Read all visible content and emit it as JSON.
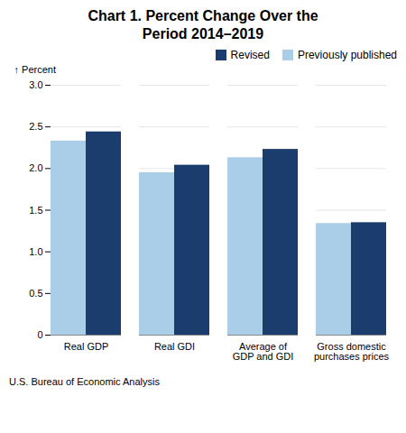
{
  "chart_data": {
    "type": "bar",
    "title": "Chart 1. Percent Change Over the\nPeriod 2014–2019",
    "ylabel": "Percent",
    "footnote": "U.S. Bureau of Economic Analysis",
    "categories": [
      "Real GDP",
      "Real GDI",
      "Average of\nGDP and GDI",
      "Gross domestic\npurchases prices"
    ],
    "series": [
      {
        "name": "Previously published",
        "color": "#aacde8",
        "values": [
          2.33,
          1.95,
          2.13,
          1.34
        ]
      },
      {
        "name": "Revised",
        "color": "#1b3d6e",
        "values": [
          2.44,
          2.04,
          2.23,
          1.35
        ]
      }
    ],
    "ylim": [
      0,
      3.0
    ],
    "yticks": [
      0,
      0.5,
      {
        "value": 1.0,
        "label": "1.0"
      },
      1.5,
      {
        "value": 2.0,
        "label": "2.0"
      },
      2.5,
      {
        "value": 3.0,
        "label": "3.0"
      }
    ],
    "grid": true,
    "legend": "upper right"
  }
}
